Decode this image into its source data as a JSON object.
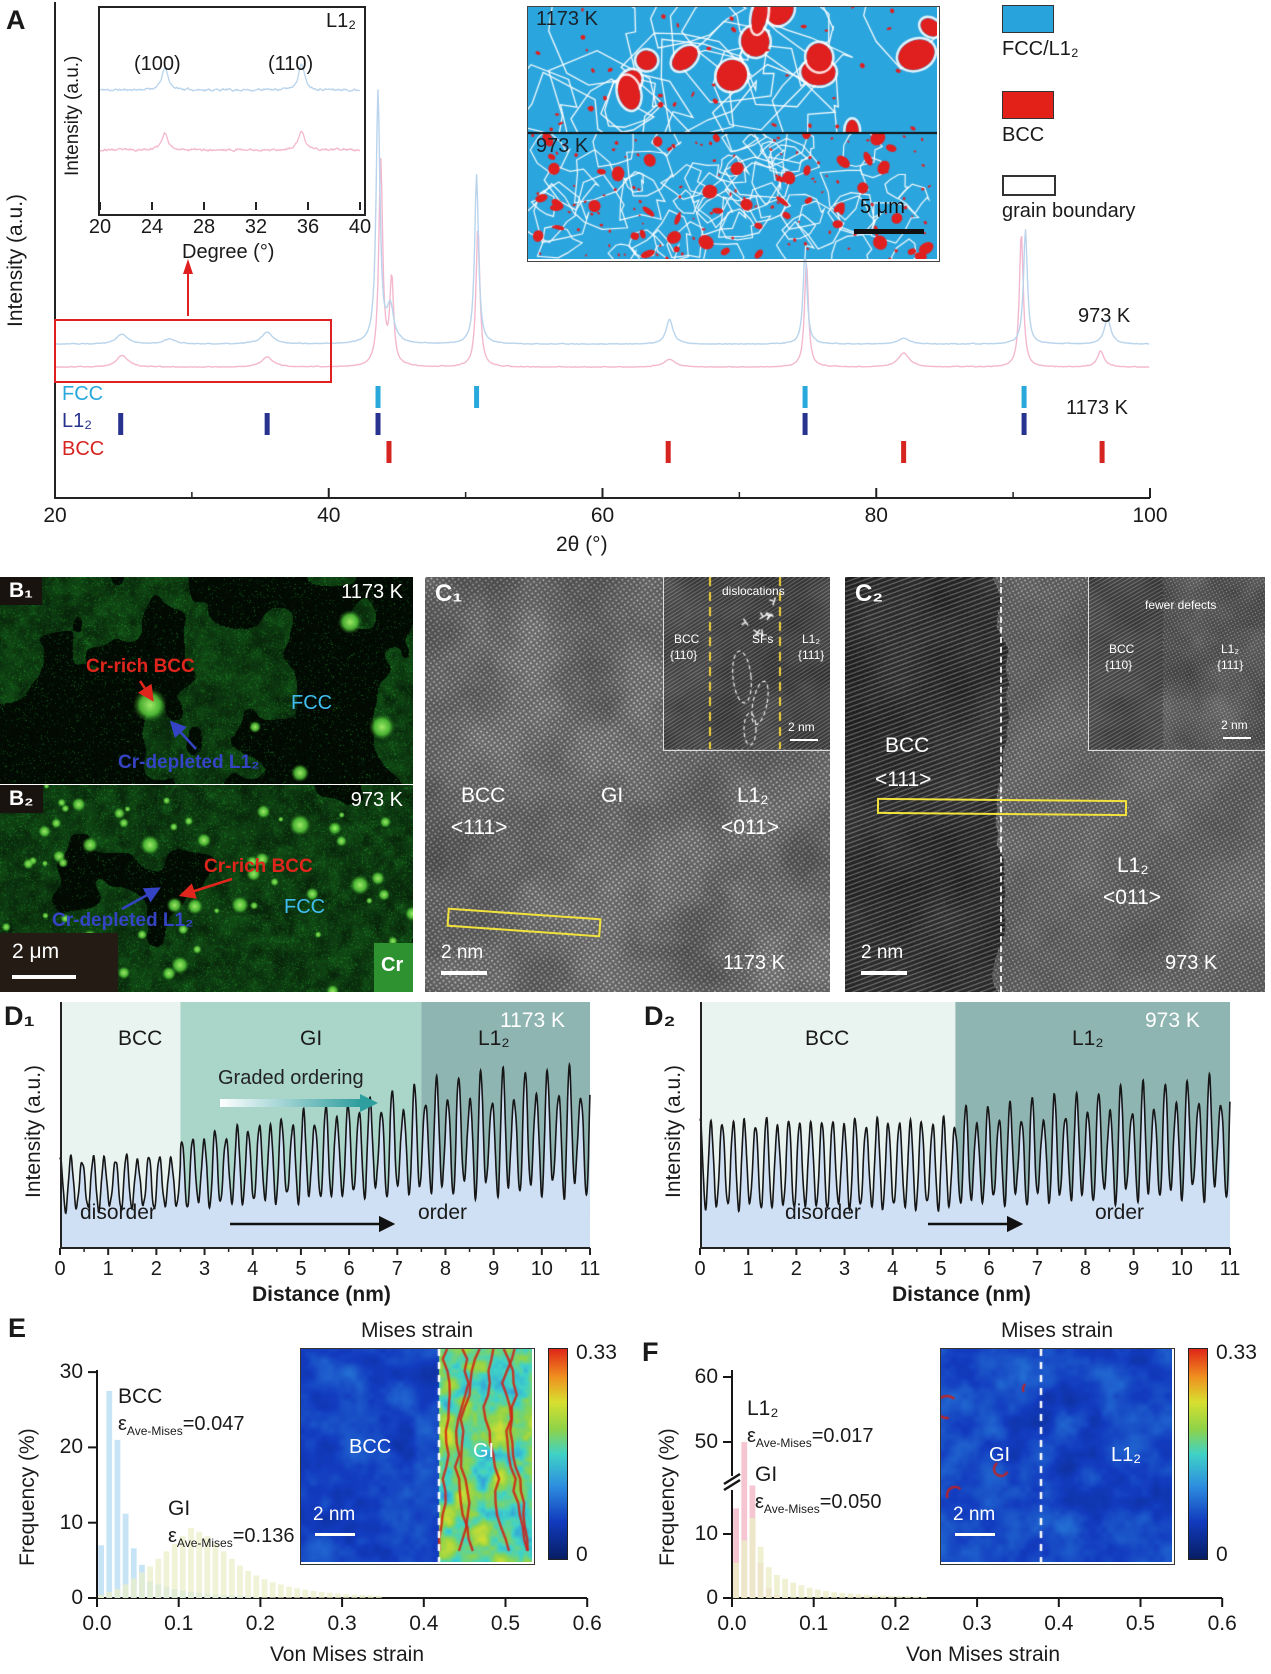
{
  "a": {
    "panel": "A",
    "ylabel": "Intensity (a.u.)",
    "xlabel": "2θ (°)",
    "curve_top": "973 K",
    "curve_bottom": "1173 K",
    "rows": [
      "FCC",
      "L1₂",
      "BCC"
    ],
    "row_colors": [
      "#29a8dc",
      "#27338f",
      "#d62420"
    ],
    "inset": {
      "corner": "L1₂",
      "p1": "(100)",
      "p2": "(110)",
      "ylabel": "Intensity (a.u.)",
      "xlabel": "Degree (°)"
    },
    "map": {
      "t1": "1173 K",
      "t2": "973 K",
      "scalebar": "5 μm"
    },
    "legend": [
      {
        "label": "FCC/L1₂",
        "color": "#29a3dc"
      },
      {
        "label": "BCC",
        "color": "#e32119"
      },
      {
        "label": "grain boundary",
        "color": "#ffffff"
      }
    ]
  },
  "b": {
    "b1": {
      "panel": "B₁",
      "temp": "1173 K",
      "bcc": "Cr-rich BCC",
      "fcc": "FCC",
      "l12": "Cr-depleted L1₂"
    },
    "b2": {
      "panel": "B₂",
      "temp": "973 K",
      "bcc": "Cr-rich BCC",
      "fcc": "FCC",
      "l12": "Cr-depleted L1₂"
    },
    "scalebar": "2 μm",
    "element": "Cr"
  },
  "c1": {
    "panel": "C₁",
    "phase1": "BCC",
    "dir1": "<111>",
    "mid": "GI",
    "phase2": "L1₂",
    "dir2": "<011>",
    "scalebar": "2 nm",
    "temp": "1173 K",
    "inset": {
      "top": "dislocations",
      "p1": "BCC",
      "p1b": "{110}",
      "sf": "SFs",
      "p2": "L1₂",
      "p2b": "{111}",
      "scalebar": "2 nm"
    }
  },
  "c2": {
    "panel": "C₂",
    "phase1": "BCC",
    "dir1": "<111>",
    "phase2": "L1₂",
    "dir2": "<011>",
    "scalebar": "2 nm",
    "temp": "973 K",
    "inset": {
      "top": "fewer defects",
      "p1": "BCC",
      "p1b": "{110}",
      "p2": "L1₂",
      "p2b": "{111}",
      "scalebar": "2 nm"
    }
  },
  "d1": {
    "panel": "D₁",
    "temp": "1173 K",
    "ylabel": "Intensity (a.u.)",
    "xlabel": "Distance (nm)",
    "r1": "BCC",
    "r2": "GI",
    "r3": "L1₂",
    "grad": "Graded  ordering",
    "left": "disorder",
    "right": "order"
  },
  "d2": {
    "panel": "D₂",
    "temp": "973 K",
    "ylabel": "Intensity (a.u.)",
    "xlabel": "Distance (nm)",
    "r1": "BCC",
    "r2": "L1₂",
    "left": "disorder",
    "right": "order"
  },
  "e": {
    "panel": "E",
    "ylabel": "Frequency (%)",
    "xlabel": "Von Mises strain",
    "inset_title": "Mises strain",
    "s1": "BCC",
    "s1_eps": {
      "sym": "ε",
      "sub": "Ave-Mises",
      "val": "=0.047"
    },
    "s2": "GI",
    "s2_eps": {
      "sym": "ε",
      "sub": "Ave-Mises",
      "val": "=0.136"
    },
    "map_left": "BCC",
    "map_right": "GI",
    "scalebar": "2 nm",
    "cb_max": "0.33",
    "cb_min": "0"
  },
  "f": {
    "panel": "F",
    "ylabel": "Frequency (%)",
    "xlabel": "Von Mises strain",
    "inset_title": "Mises strain",
    "s1": "L1₂",
    "s1_eps": {
      "sym": "ε",
      "sub": "Ave-Mises",
      "val": "=0.017"
    },
    "s2": "GI",
    "s2_eps": {
      "sym": "ε",
      "sub": "Ave-Mises",
      "val": "=0.050"
    },
    "map_left": "GI",
    "map_right": "L1₂",
    "scalebar": "2 nm",
    "cb_max": "0.33",
    "cb_min": "0"
  },
  "chart_data": [
    {
      "id": "A",
      "type": "line",
      "title": "XRD patterns of 973 K and 1173 K alloys",
      "xlabel": "2θ (°)",
      "ylabel": "Intensity (a.u.)",
      "xlim": [
        20,
        100
      ],
      "xticks": [
        20,
        40,
        60,
        80,
        100
      ],
      "series": [
        {
          "name": "973 K",
          "color": "#b9d4ec",
          "peaks_2theta": [
            24.9,
            28.4,
            35.5,
            43.6,
            44.5,
            50.8,
            64.9,
            74.8,
            82.0,
            90.9,
            96.9
          ],
          "peak_heights": [
            10,
            5,
            12,
            252,
            35,
            170,
            25,
            95,
            6,
            115,
            25
          ]
        },
        {
          "name": "1173 K",
          "color": "#f3b8cf",
          "peaks_2theta": [
            24.9,
            35.5,
            43.8,
            44.6,
            50.9,
            64.9,
            74.9,
            82.0,
            90.6,
            96.4
          ],
          "peak_heights": [
            12,
            10,
            205,
            85,
            140,
            8,
            105,
            14,
            135,
            16
          ]
        }
      ],
      "phase_tick_rows": [
        {
          "phase": "FCC",
          "color": "#29a8dc",
          "positions": [
            43.6,
            50.8,
            74.8,
            90.8
          ]
        },
        {
          "phase": "L1₂",
          "color": "#27338f",
          "positions": [
            24.8,
            35.5,
            43.6,
            74.8,
            90.8
          ]
        },
        {
          "phase": "BCC",
          "color": "#d62420",
          "positions": [
            44.4,
            64.8,
            82.0,
            96.5
          ]
        }
      ]
    },
    {
      "id": "A_inset",
      "type": "line",
      "title": "L1₂ superlattice region",
      "xlabel": "Degree (°)",
      "ylabel": "Intensity (a.u.)",
      "xlim": [
        20,
        40
      ],
      "xticks": [
        20,
        24,
        28,
        32,
        36,
        40
      ],
      "superlattice_peaks": [
        25.0,
        35.5
      ],
      "peak_labels": [
        "(100)",
        "(110)"
      ],
      "series": [
        {
          "name": "973 K",
          "color": "#b9d4ec",
          "peak_heights": [
            22,
            26
          ]
        },
        {
          "name": "1173 K",
          "color": "#f3b8cf",
          "peak_heights": [
            17,
            19
          ]
        }
      ]
    },
    {
      "id": "D1",
      "type": "line",
      "temperature": "1173 K",
      "xlabel": "Distance (nm)",
      "ylabel": "Intensity (a.u.)",
      "xlim": [
        0,
        11
      ],
      "xticks": [
        0,
        1,
        2,
        3,
        4,
        5,
        6,
        7,
        8,
        9,
        10,
        11
      ],
      "regions": [
        {
          "name": "BCC",
          "from": 0,
          "to": 2.5,
          "color": "#e9f4f0"
        },
        {
          "name": "GI",
          "from": 2.5,
          "to": 7.5,
          "color": "#a9d6c9"
        },
        {
          "name": "L1₂",
          "from": 7.5,
          "to": 11,
          "color": "#8fb5b2"
        }
      ],
      "profile": {
        "frequency_per_nm": 4.35,
        "segments": [
          {
            "to": 2.5,
            "mean": [
              0.26,
              0.27
            ],
            "amp": [
              0.1,
              0.1
            ],
            "alt": [
              0.0,
              0.05
            ]
          },
          {
            "to": 7.5,
            "mean": [
              0.3,
              0.43
            ],
            "amp": [
              0.13,
              0.19
            ],
            "alt": [
              0.05,
              0.25
            ]
          },
          {
            "to": 11,
            "mean": [
              0.44,
              0.46
            ],
            "amp": [
              0.2,
              0.22
            ],
            "alt": [
              0.3,
              0.3
            ]
          }
        ]
      },
      "annotations": [
        "Graded  ordering",
        "disorder",
        "order"
      ]
    },
    {
      "id": "D2",
      "type": "line",
      "temperature": "973 K",
      "xlabel": "Distance (nm)",
      "ylabel": "Intensity (a.u.)",
      "xlim": [
        0,
        11
      ],
      "xticks": [
        0,
        1,
        2,
        3,
        4,
        5,
        6,
        7,
        8,
        9,
        10,
        11
      ],
      "regions": [
        {
          "name": "BCC",
          "from": 0,
          "to": 5.3,
          "color": "#e9f4f0"
        },
        {
          "name": "L1₂",
          "from": 5.3,
          "to": 11,
          "color": "#8fb5b2"
        }
      ],
      "profile": {
        "frequency_per_nm": 4.35,
        "segments": [
          {
            "to": 5.3,
            "mean": [
              0.34,
              0.34
            ],
            "amp": [
              0.17,
              0.17
            ],
            "alt": [
              0.05,
              0.05
            ]
          },
          {
            "to": 11,
            "mean": [
              0.36,
              0.44
            ],
            "amp": [
              0.17,
              0.21
            ],
            "alt": [
              0.25,
              0.3
            ]
          }
        ]
      },
      "annotations": [
        "disorder",
        "order"
      ]
    },
    {
      "id": "E",
      "type": "bar",
      "xlabel": "Von Mises strain",
      "ylabel": "Frequency (%)",
      "xlim": [
        0,
        0.6
      ],
      "ylim": [
        0,
        30
      ],
      "bin_width": 0.01,
      "xticks": [
        "0.0",
        "0.1",
        "0.2",
        "0.3",
        "0.4",
        "0.5",
        "0.6"
      ],
      "yticks": [
        0,
        10,
        20,
        30
      ],
      "series": [
        {
          "name": "BCC",
          "ave_mises": 0.047,
          "color": "#c7e4f6",
          "opacity": 1,
          "values": [
            7,
            27.5,
            21,
            11.2,
            6.6,
            4.4,
            2.2,
            1.8,
            1.5,
            1.2,
            1.0,
            0.8,
            0.7,
            0.6,
            0.5,
            0.4,
            0.35,
            0.3,
            0.25,
            0.2
          ]
        },
        {
          "name": "GI",
          "ave_mises": 0.136,
          "color": "#eceec7",
          "opacity": 0.72,
          "values": [
            0.4,
            0.8,
            1.2,
            1.8,
            2.6,
            3.4,
            4.2,
            5.2,
            6.2,
            7.2,
            8.2,
            9.3,
            8.8,
            8.2,
            7.2,
            6.2,
            5.2,
            4.3,
            3.6,
            3.0,
            2.5,
            2.1,
            1.8,
            1.5,
            1.3,
            1.1,
            0.95,
            0.8,
            0.7,
            0.6,
            0.5,
            0.45,
            0.4,
            0.35,
            0.3
          ]
        }
      ],
      "inset": {
        "title": "Mises strain",
        "left_label": "BCC",
        "right_label": "GI",
        "scalebar": "2 nm",
        "colorbar_max": 0.33,
        "colorbar_min": 0
      }
    },
    {
      "id": "F",
      "type": "bar",
      "xlabel": "Von Mises strain",
      "ylabel": "Frequency (%)",
      "xlim": [
        0,
        0.6
      ],
      "ylim": [
        0,
        60
      ],
      "axis_break": [
        15,
        45
      ],
      "bin_width": 0.01,
      "xticks": [
        "0.0",
        "0.1",
        "0.2",
        "0.3",
        "0.4",
        "0.5",
        "0.6"
      ],
      "yticks": [
        0,
        10,
        50,
        60
      ],
      "series": [
        {
          "name": "L1₂",
          "ave_mises": 0.017,
          "color": "#f5c6d2",
          "opacity": 1,
          "values": [
            14,
            50,
            33,
            5.5,
            1.5,
            0.5,
            0.2
          ]
        },
        {
          "name": "GI",
          "ave_mises": 0.05,
          "color": "#eceec7",
          "opacity": 0.8,
          "values": [
            5.5,
            9,
            12.5,
            8,
            4.8,
            3.6,
            3.0,
            2.4,
            2.0,
            1.6,
            1.3,
            1.1,
            0.9,
            0.8,
            0.7,
            0.6,
            0.5,
            0.45,
            0.4,
            0.35,
            0.3,
            0.27,
            0.24,
            0.2
          ]
        }
      ],
      "inset": {
        "title": "Mises strain",
        "left_label": "GI",
        "right_label": "L1₂",
        "scalebar": "2 nm",
        "colorbar_max": 0.33,
        "colorbar_min": 0
      }
    }
  ]
}
